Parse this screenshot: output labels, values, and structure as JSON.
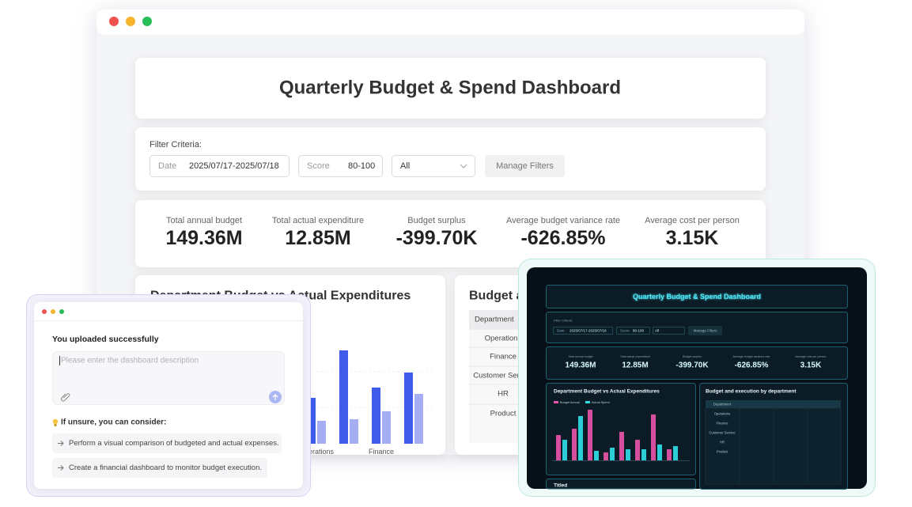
{
  "window": {
    "title": "Quarterly Budget & Spend Dashboard",
    "filters": {
      "label": "Filter Criteria:",
      "date_label": "Date",
      "date_value": "2025/07/17-2025/07/18",
      "score_label": "Score",
      "score_value": "80-100",
      "select": "All",
      "button": "Manage Filters"
    },
    "kpis": [
      {
        "label": "Total annual budget",
        "value": "149.36M"
      },
      {
        "label": "Total actual expenditure",
        "value": "12.85M"
      },
      {
        "label": "Budget surplus",
        "value": "-399.70K"
      },
      {
        "label": "Average budget variance rate",
        "value": "-626.85%"
      },
      {
        "label": "Average cost per person",
        "value": "3.15K"
      }
    ],
    "chart": {
      "title": "Department Budget vs Actual Expenditures",
      "categories": [
        "Operations",
        null,
        "Finance",
        null
      ],
      "series": [
        {
          "color": "#3f5bea",
          "values": [
            58,
            118,
            71,
            90
          ]
        },
        {
          "color": "#a5aef2",
          "values": [
            29,
            31,
            41,
            63
          ]
        }
      ]
    },
    "table": {
      "title": "Budget and execution by department",
      "rows": [
        "Department",
        "Operations",
        "Finance",
        "Customer Service",
        "HR",
        "Product"
      ]
    }
  },
  "assistant": {
    "status": "You uploaded successfully",
    "placeholder": "Please enter the dashboard description",
    "hint": "If unsure, you can consider:",
    "suggestions": [
      "Perform a visual comparison of budgeted and actual expenses.",
      "Create a financial dashboard to monitor budget execution."
    ]
  },
  "dark_preview": {
    "chart": {
      "series": [
        {
          "name": "Budget Annual",
          "color": "#e655a8",
          "values": [
            32,
            40,
            64,
            10,
            36,
            26,
            58,
            14
          ]
        },
        {
          "name": "Actual Spend",
          "color": "#2fdde6",
          "values": [
            26,
            56,
            12,
            16,
            14,
            14,
            20,
            18
          ]
        }
      ]
    },
    "footer_card": "Titled"
  }
}
